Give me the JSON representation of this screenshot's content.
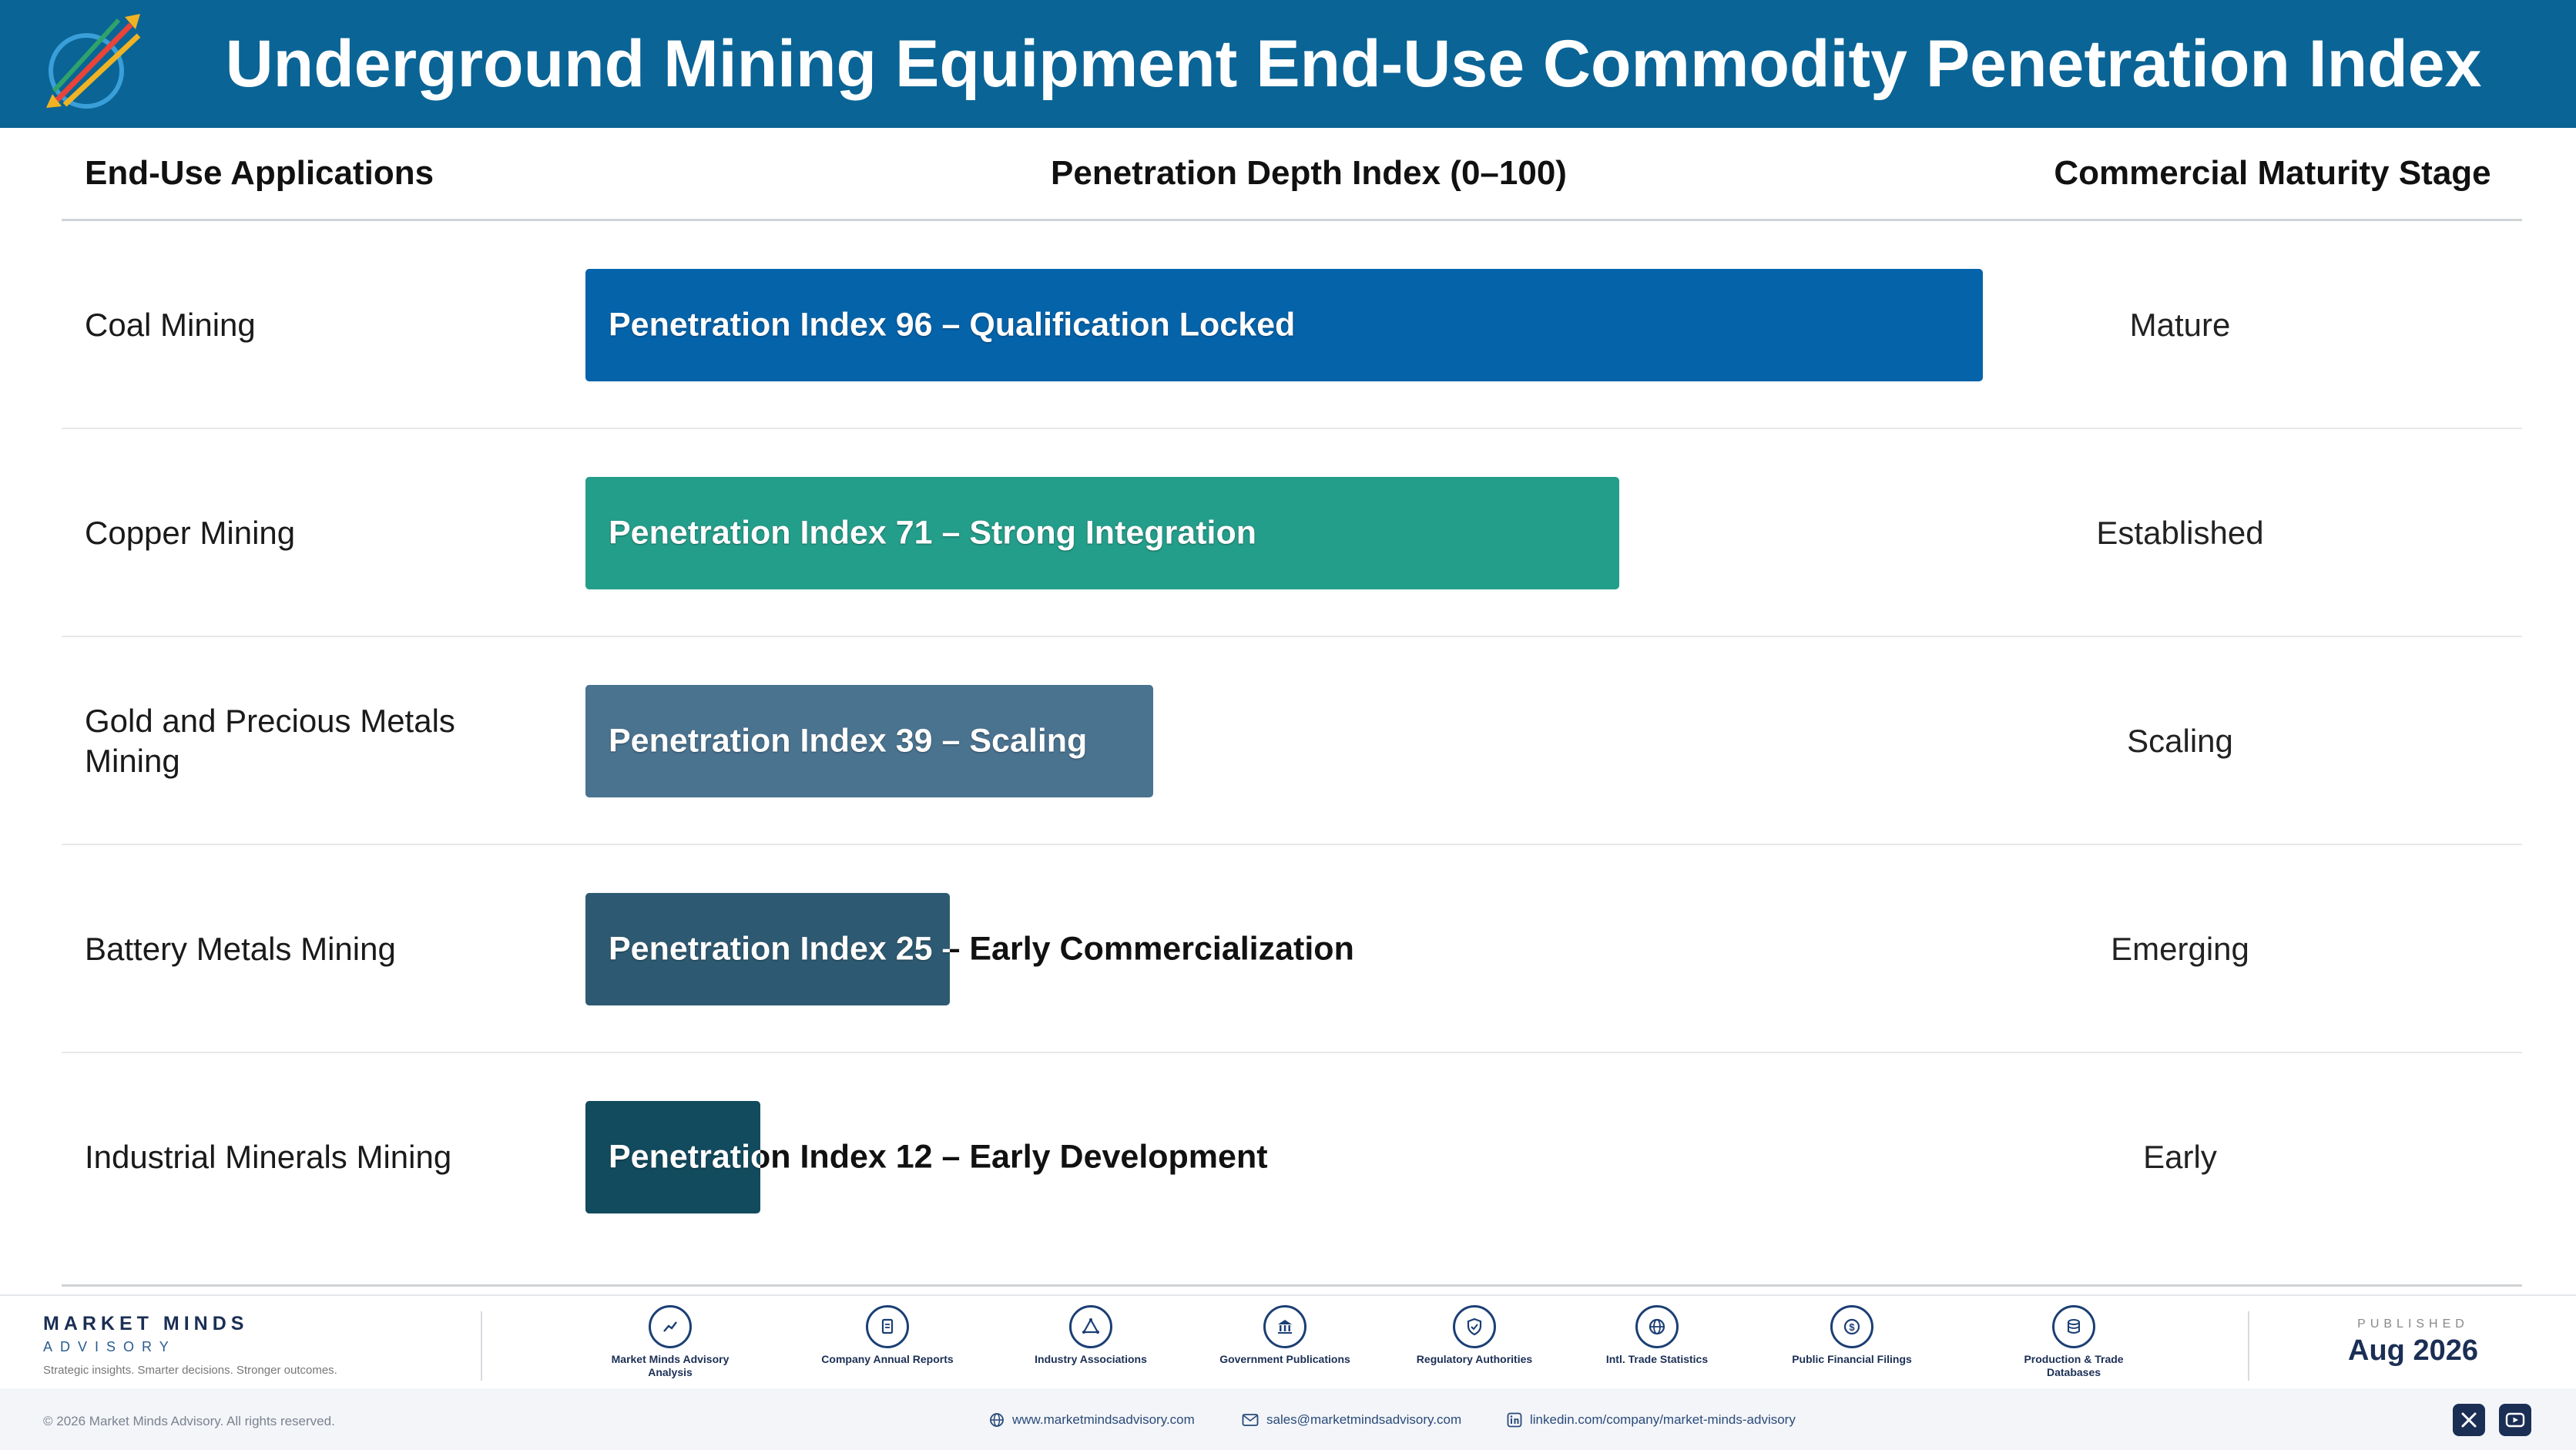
{
  "header": {
    "title": "Underground Mining Equipment End-Use Commodity Penetration Index"
  },
  "columns": {
    "applications": "End-Use Applications",
    "index": "Penetration Depth Index (0–100)",
    "stage": "Commercial Maturity Stage"
  },
  "chart_data": {
    "type": "bar",
    "orientation": "horizontal",
    "xlim": [
      0,
      100
    ],
    "categories": [
      "Coal Mining",
      "Copper Mining",
      "Gold and Precious Metals Mining",
      "Battery Metals Mining",
      "Industrial Minerals Mining"
    ],
    "values": [
      96,
      71,
      39,
      25,
      12
    ],
    "bar_labels": [
      "Penetration Index 96 – Qualification Locked",
      "Penetration Index 71 – Strong Integration",
      "Penetration Index 39 – Scaling",
      "Penetration Index 25 – Early Commercialization",
      "Penetration Index 12 – Early Development"
    ],
    "stages": [
      "Mature",
      "Established",
      "Scaling",
      "Emerging",
      "Early"
    ],
    "colors": [
      "#0563aa",
      "#239e8a",
      "#4a7390",
      "#2d5a72",
      "#124a5e"
    ]
  },
  "footer": {
    "brand_name": "MARKET MINDS",
    "brand_sub": "ADVISORY",
    "brand_tag": "Strategic insights. Smarter decisions. Stronger outcomes.",
    "sources": [
      {
        "label": "Market Minds Advisory Analysis",
        "icon": "trend-icon"
      },
      {
        "label": "Company Annual Reports",
        "icon": "document-icon"
      },
      {
        "label": "Industry Associations",
        "icon": "network-icon"
      },
      {
        "label": "Government Publications",
        "icon": "building-icon"
      },
      {
        "label": "Regulatory Authorities",
        "icon": "shield-icon"
      },
      {
        "label": "Intl. Trade Statistics",
        "icon": "globe-icon"
      },
      {
        "label": "Public Financial Filings",
        "icon": "dollar-icon"
      },
      {
        "label": "Production & Trade Databases",
        "icon": "database-icon"
      }
    ],
    "published_label": "PUBLISHED",
    "published_date": "Aug 2026",
    "copyright": "© 2026 Market Minds Advisory. All rights reserved.",
    "website": "www.marketmindsadvisory.com",
    "email": "sales@marketmindsadvisory.com",
    "linkedin": "linkedin.com/company/market-minds-advisory"
  }
}
